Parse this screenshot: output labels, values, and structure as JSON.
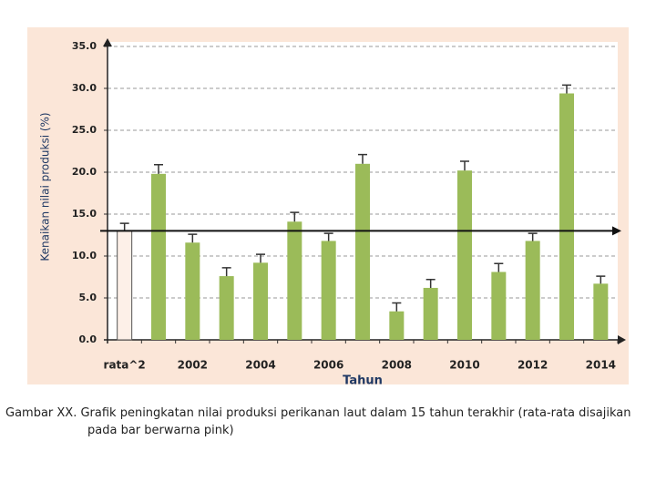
{
  "chart_data": {
    "type": "bar",
    "x_label": "Tahun",
    "y_label": "Kenaikan nilai produksi (%)",
    "categories": [
      "rata^2",
      null,
      "2002",
      null,
      "2004",
      null,
      "2006",
      null,
      "2008",
      null,
      "2010",
      null,
      "2012",
      null,
      "2014"
    ],
    "values": [
      13.0,
      19.8,
      11.6,
      7.6,
      9.2,
      14.1,
      11.8,
      21.0,
      3.4,
      6.2,
      20.2,
      8.1,
      11.8,
      29.4,
      6.7
    ],
    "errors": [
      0.9,
      1.1,
      1.0,
      1.0,
      1.0,
      1.1,
      0.9,
      1.1,
      1.0,
      1.0,
      1.1,
      1.0,
      0.9,
      1.0,
      0.9
    ],
    "colors": [
      "#fdf0e8",
      "#9bbb59",
      "#9bbb59",
      "#9bbb59",
      "#9bbb59",
      "#9bbb59",
      "#9bbb59",
      "#9bbb59",
      "#9bbb59",
      "#9bbb59",
      "#9bbb59",
      "#9bbb59",
      "#9bbb59",
      "#9bbb59",
      "#9bbb59"
    ],
    "reference_line": 13.0,
    "ylim": [
      0,
      35
    ],
    "yticks": [
      {
        "value": 0,
        "label": "0.0"
      },
      {
        "value": 5,
        "label": "5.0"
      },
      {
        "value": 10,
        "label": "10.0"
      },
      {
        "value": 15,
        "label": "15.0"
      },
      {
        "value": 20,
        "label": "20.0"
      },
      {
        "value": 25,
        "label": "25.0"
      },
      {
        "value": 30,
        "label": "30.0"
      },
      {
        "value": 35,
        "label": "35.0"
      }
    ],
    "grid": true
  },
  "caption": "Gambar XX. Grafik peningkatan nilai produksi perikanan laut dalam 15 tahun terakhir (rata-rata disajikan pada bar berwarna pink)"
}
